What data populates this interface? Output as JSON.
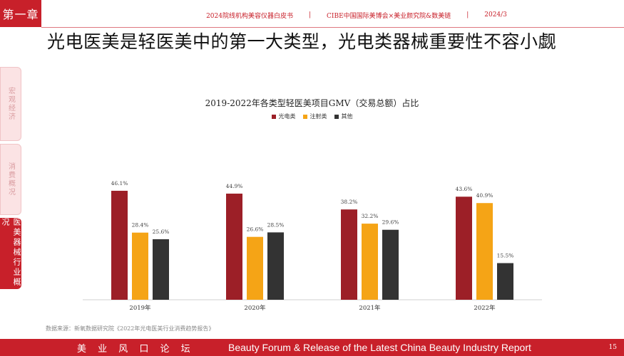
{
  "chapter": "第一章",
  "header": {
    "items": [
      "2024院线机构美容仪器白皮书",
      "CIBE中国国际美博会×美业颜究院&数美链",
      "2024/3"
    ],
    "separator": "|"
  },
  "title": "光电医美是轻医美中的第一大类型，光电类器械重要性不容小觑",
  "sidebar": {
    "tabs": [
      {
        "label": "宏观经济",
        "active": false
      },
      {
        "label": "消费概况",
        "active": false
      },
      {
        "label": "医美器械行业概况",
        "active": true
      }
    ]
  },
  "chart_data": {
    "type": "bar",
    "title": "2019-2022年各类型轻医美项目GMV（交易总额）占比",
    "categories": [
      "2019年",
      "2020年",
      "2021年",
      "2022年"
    ],
    "series": [
      {
        "name": "光电类",
        "color": "#9c1f27",
        "values": [
          46.1,
          44.9,
          38.2,
          43.6
        ],
        "labels": [
          "46.1%",
          "44.9%",
          "38.2%",
          "43.6%"
        ]
      },
      {
        "name": "注射类",
        "color": "#f5a416",
        "values": [
          28.4,
          26.6,
          32.2,
          40.9
        ],
        "labels": [
          "28.4%",
          "26.6%",
          "32.2%",
          "40.9%"
        ]
      },
      {
        "name": "其他",
        "color": "#333333",
        "values": [
          25.6,
          28.5,
          29.6,
          15.5
        ],
        "labels": [
          "25.6%",
          "28.5%",
          "29.6%",
          "15.5%"
        ]
      }
    ],
    "ylim": [
      0,
      50
    ],
    "grid": false,
    "legend_position": "top"
  },
  "source": "数据来源：新氧数据研究院《2022年光电医美行业消费趋势报告》",
  "footer": {
    "cn": "美 业 风 口 论 坛",
    "en": "Beauty Forum & Release of the Latest China Beauty Industry Report",
    "page": "15"
  }
}
